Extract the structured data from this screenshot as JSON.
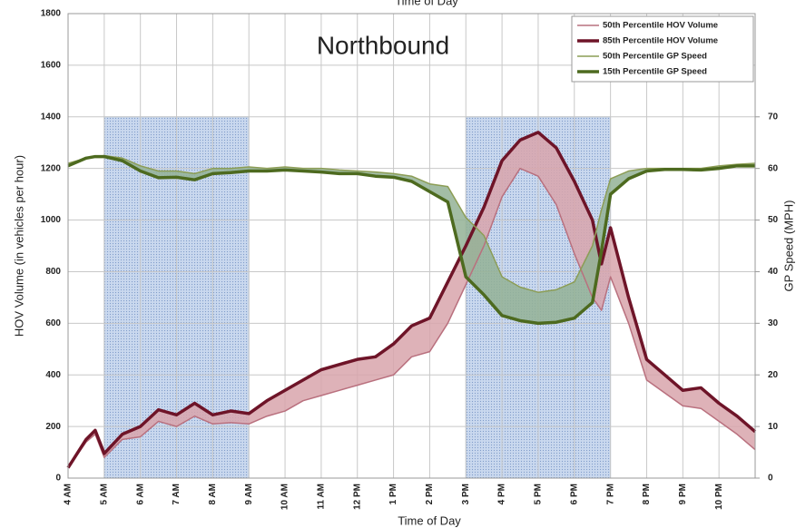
{
  "chart_data": {
    "type": "line",
    "title": "Northbound",
    "top_label": "Time of Day",
    "x_label": "Time of Day",
    "y_label": "HOV Volume (in vehicles per hour)",
    "y2_label": "GP Speed (MPH)",
    "x": [
      4,
      4.5,
      4.75,
      5,
      5.5,
      6,
      6.5,
      7,
      7.5,
      8,
      8.5,
      9,
      9.5,
      10,
      10.5,
      11,
      11.5,
      12,
      12.5,
      13,
      13.5,
      14,
      14.5,
      15,
      15.5,
      16,
      16.5,
      17,
      17.5,
      18,
      18.5,
      18.75,
      19,
      19.5,
      20,
      20.5,
      21,
      21.5,
      22,
      22.5,
      23
    ],
    "xlim": [
      4,
      23
    ],
    "xticks": [
      {
        "value": 4,
        "label": "4 AM"
      },
      {
        "value": 5,
        "label": "5 AM"
      },
      {
        "value": 6,
        "label": "6 AM"
      },
      {
        "value": 7,
        "label": "7 AM"
      },
      {
        "value": 8,
        "label": "8 AM"
      },
      {
        "value": 9,
        "label": "9 AM"
      },
      {
        "value": 10,
        "label": "10 AM"
      },
      {
        "value": 11,
        "label": "11 AM"
      },
      {
        "value": 12,
        "label": "12 PM"
      },
      {
        "value": 13,
        "label": "1 PM"
      },
      {
        "value": 14,
        "label": "2 PM"
      },
      {
        "value": 15,
        "label": "3 PM"
      },
      {
        "value": 16,
        "label": "4 PM"
      },
      {
        "value": 17,
        "label": "5 PM"
      },
      {
        "value": 18,
        "label": "6 PM"
      },
      {
        "value": 19,
        "label": "7 PM"
      },
      {
        "value": 20,
        "label": "8 PM"
      },
      {
        "value": 21,
        "label": "9 PM"
      },
      {
        "value": 22,
        "label": "10 PM"
      }
    ],
    "ylim": [
      0,
      1800
    ],
    "yticks": [
      0,
      200,
      400,
      600,
      800,
      1000,
      1200,
      1400,
      1600,
      1800
    ],
    "y2lim": [
      0,
      90
    ],
    "y2ticks": [
      0,
      10,
      20,
      30,
      40,
      50,
      60,
      70
    ],
    "grid": true,
    "legend": "top-right",
    "shaded_regions": [
      {
        "xrange": [
          5,
          9
        ],
        "ytop": 1400
      },
      {
        "xrange": [
          15,
          19
        ],
        "ytop": 1400
      }
    ],
    "shade_color": "#b9cde6",
    "series": [
      {
        "name": "50th Percentile HOV Volume",
        "color": "#b9707e",
        "width": 1.5,
        "values": [
          40,
          140,
          170,
          80,
          150,
          160,
          220,
          200,
          240,
          210,
          215,
          210,
          240,
          260,
          300,
          320,
          340,
          360,
          380,
          400,
          470,
          490,
          600,
          750,
          900,
          1090,
          1200,
          1170,
          1060,
          870,
          700,
          650,
          780,
          600,
          380,
          330,
          280,
          270,
          220,
          170,
          110
        ]
      },
      {
        "name": "85th Percentile HOV Volume",
        "color": "#6e1428",
        "width": 3.5,
        "band_fill": "#d8a4ab",
        "values": [
          40,
          150,
          185,
          95,
          170,
          200,
          265,
          245,
          290,
          245,
          260,
          250,
          300,
          340,
          380,
          420,
          440,
          460,
          470,
          520,
          590,
          620,
          760,
          900,
          1050,
          1230,
          1310,
          1340,
          1280,
          1150,
          1000,
          830,
          970,
          700,
          460,
          400,
          340,
          350,
          290,
          240,
          180
        ]
      },
      {
        "name": "50th Percentile GP Speed",
        "color": "#8c9d55",
        "width": 1.5,
        "axis": "y2",
        "values": [
          61,
          62,
          62.3,
          62.5,
          62,
          60.5,
          59.5,
          59.5,
          59,
          60,
          60,
          60.3,
          60,
          60.3,
          60,
          60,
          59.7,
          59.5,
          59.3,
          59,
          58.5,
          57,
          56.5,
          50.5,
          47,
          39,
          37,
          36,
          36.5,
          38,
          45,
          52,
          58,
          59.5,
          60,
          60,
          60,
          60,
          60.5,
          60.8,
          61
        ]
      },
      {
        "name": "15th Percentile GP Speed",
        "color": "#4d6a1f",
        "width": 3.5,
        "axis": "y2",
        "band_fill": "#93b195",
        "values": [
          60.5,
          62,
          62.3,
          62.3,
          61.5,
          59.5,
          58.2,
          58.3,
          57.8,
          59,
          59.2,
          59.5,
          59.5,
          59.7,
          59.5,
          59.3,
          59,
          59,
          58.5,
          58.3,
          57.5,
          55.5,
          53.5,
          39,
          35.5,
          31.5,
          30.5,
          30,
          30.2,
          31,
          34,
          44,
          55,
          58,
          59.5,
          59.8,
          59.8,
          59.7,
          60,
          60.5,
          60.5
        ]
      }
    ]
  }
}
